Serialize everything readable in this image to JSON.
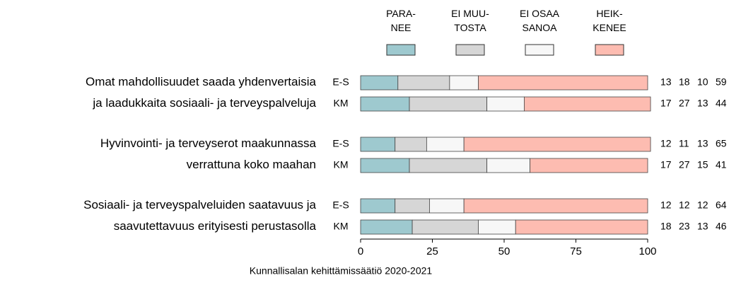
{
  "chart_data": {
    "type": "bar",
    "orientation": "horizontal",
    "stacked": true,
    "categories": [
      "E-S",
      "KM",
      "E-S",
      "KM",
      "E-S",
      "KM"
    ],
    "group_labels": [
      "Omat mahdollisuudet saada yhdenvertaisia\nja laadukkaita sosiaali- ja terveyspalveluja",
      "Hyvinvointi- ja terveyserot maakunnassa\nverrattuna koko maahan",
      "Sosiaali- ja terveyspalveluiden saatavuus ja\nsaavutettavuus erityisesti perustasolla"
    ],
    "series": [
      {
        "name": "PARA-\nNEE",
        "color": "#9ec9cf",
        "values": [
          13,
          17,
          12,
          17,
          12,
          18
        ]
      },
      {
        "name": "EI MUU-\nTOSTA",
        "color": "#d6d6d6",
        "values": [
          18,
          27,
          11,
          27,
          12,
          23
        ]
      },
      {
        "name": "EI OSAA\nSANOA",
        "color": "#f7f7f7",
        "values": [
          10,
          13,
          13,
          15,
          12,
          13
        ]
      },
      {
        "name": "HEIK-\nKENEE",
        "color": "#fdbcb1",
        "values": [
          59,
          44,
          65,
          41,
          64,
          46
        ]
      }
    ],
    "xlim": [
      0,
      100
    ],
    "xticks": [
      0,
      25,
      50,
      75,
      100
    ],
    "source": "Kunnallisalan kehittämissäätiö 2020-2021"
  }
}
